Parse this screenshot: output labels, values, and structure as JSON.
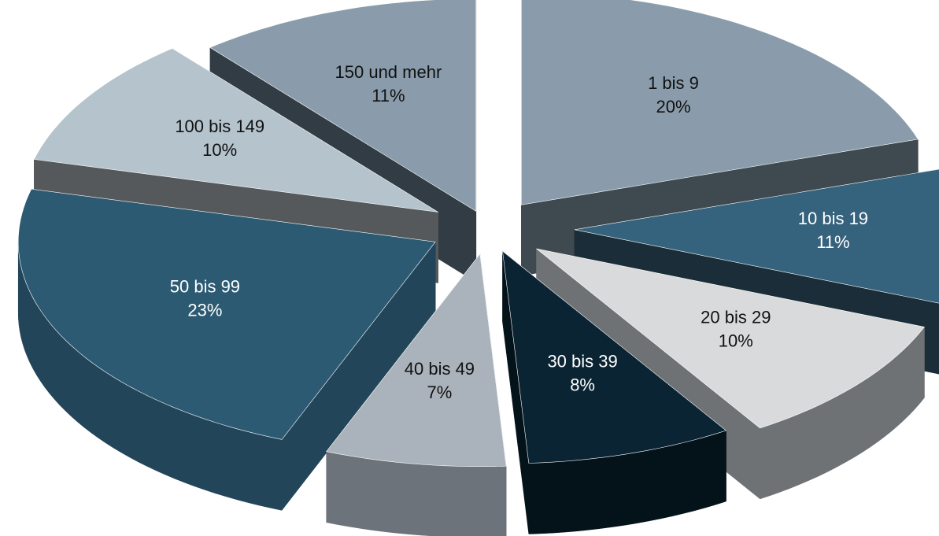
{
  "chart_data": {
    "type": "pie",
    "categories": [
      "1 bis 9",
      "10 bis 19",
      "20 bis 29",
      "30 bis 39",
      "40 bis 49",
      "50 bis 99",
      "100 bis 149",
      "150 und mehr"
    ],
    "values": [
      20,
      11,
      10,
      8,
      7,
      23,
      10,
      11
    ],
    "labels": [
      "20%",
      "11%",
      "10%",
      "8%",
      "7%",
      "23%",
      "10%",
      "11%"
    ],
    "exploded": true,
    "three_d": true,
    "colors": [
      "#8a9cab",
      "#35627c",
      "#d9dadb",
      "#0a2433",
      "#aab3bb",
      "#2c5a72",
      "#b4c3cc",
      "#8a9cab"
    ],
    "side_colors": [
      "#3f4a50",
      "#1a2d38",
      "#6f7275",
      "#04121a",
      "#6c737a",
      "#22455a",
      "#56595c",
      "#323c44"
    ],
    "label_colors": [
      "#111111",
      "#ffffff",
      "#111111",
      "#ffffff",
      "#111111",
      "#ffffff",
      "#111111",
      "#111111"
    ],
    "title": "",
    "legend": "none"
  }
}
